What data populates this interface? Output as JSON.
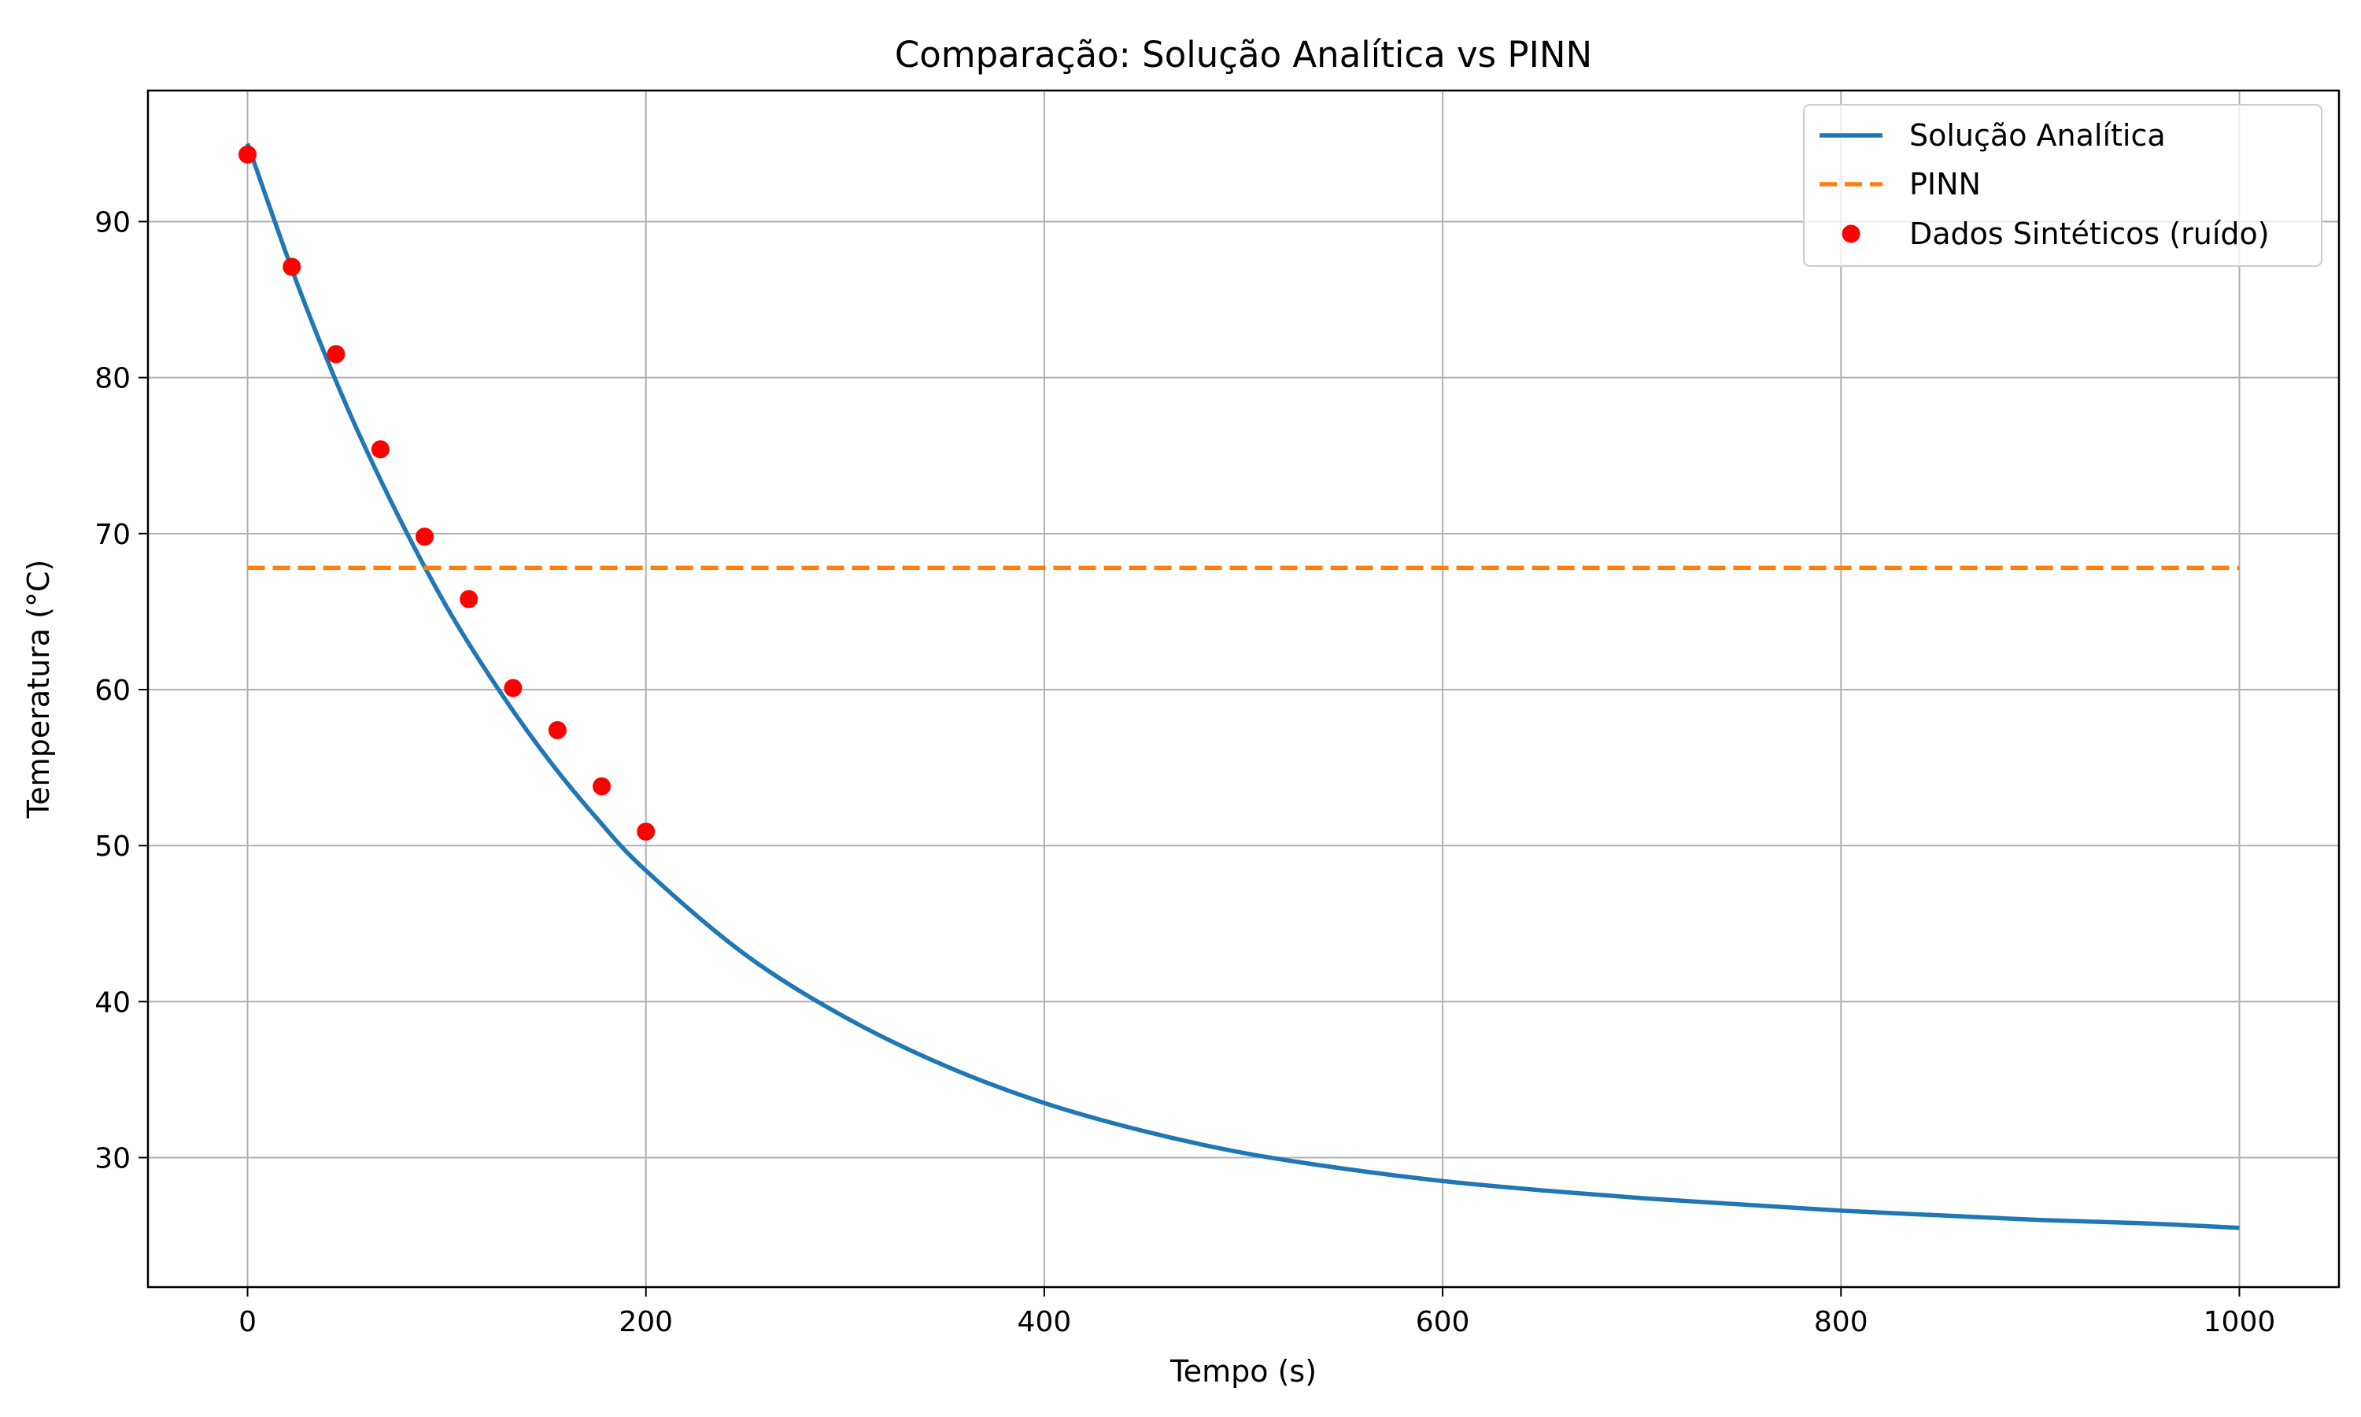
{
  "chart_data": {
    "type": "line",
    "title": "Comparação: Solução Analítica vs PINN",
    "xlabel": "Tempo (s)",
    "ylabel": "Temperatura (°C)",
    "xlim": [
      -50,
      1050
    ],
    "ylim": [
      21.7,
      98.4
    ],
    "xticks": [
      0,
      200,
      400,
      600,
      800,
      1000
    ],
    "yticks": [
      30,
      40,
      50,
      60,
      70,
      80,
      90
    ],
    "xtick_labels": [
      "0",
      "200",
      "400",
      "600",
      "800",
      "1000"
    ],
    "ytick_labels": [
      "30",
      "40",
      "50",
      "60",
      "70",
      "80",
      "90"
    ],
    "grid": true,
    "legend_position": "top-right",
    "series": [
      {
        "name": "Solução Analítica",
        "kind": "line",
        "style": "solid",
        "color": "#1f77b4",
        "x": [
          0,
          25,
          50,
          75,
          100,
          125,
          150,
          175,
          200,
          250,
          300,
          350,
          400,
          450,
          500,
          550,
          600,
          650,
          700,
          750,
          800,
          850,
          900,
          950,
          1000
        ],
        "y": [
          95.0,
          86.0,
          78.1,
          71.3,
          65.3,
          60.2,
          55.7,
          51.8,
          48.4,
          43.0,
          39.0,
          35.9,
          33.5,
          31.7,
          30.3,
          29.3,
          28.5,
          27.9,
          27.4,
          27.0,
          26.6,
          26.3,
          26.0,
          25.8,
          25.5
        ]
      },
      {
        "name": "PINN",
        "kind": "line",
        "style": "dashed",
        "color": "#ff7f0e",
        "x": [
          0,
          1000
        ],
        "y": [
          67.8,
          67.8
        ]
      },
      {
        "name": "Dados Sintéticos (ruído)",
        "kind": "scatter",
        "color": "#ff0000",
        "x": [
          0,
          22.2,
          44.4,
          66.7,
          88.9,
          111.1,
          133.3,
          155.6,
          177.8,
          200
        ],
        "y": [
          94.3,
          87.1,
          81.5,
          75.4,
          69.8,
          65.8,
          60.1,
          57.4,
          53.8,
          50.9
        ]
      }
    ]
  }
}
